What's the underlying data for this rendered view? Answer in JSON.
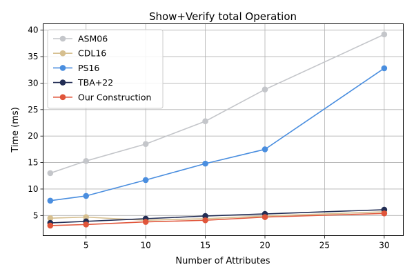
{
  "chart_data": {
    "type": "line",
    "title": "Show+Verify total Operation",
    "xlabel": "Number of Attributes",
    "ylabel": "Time (ms)",
    "xlim": [
      1.4,
      31.6
    ],
    "ylim": [
      1.2,
      41.2
    ],
    "xticks": [
      5,
      10,
      15,
      20,
      25,
      30
    ],
    "yticks": [
      5,
      10,
      15,
      20,
      25,
      30,
      35,
      40
    ],
    "grid": true,
    "legend_position": "upper-left",
    "x": [
      2,
      5,
      10,
      15,
      20,
      30
    ],
    "series": [
      {
        "name": "ASM06",
        "color": "#c4c6ca",
        "values": [
          13.0,
          15.3,
          18.5,
          22.8,
          28.8,
          39.2
        ]
      },
      {
        "name": "CDL16",
        "color": "#d6bf8f",
        "values": [
          4.5,
          4.7,
          4.1,
          4.4,
          4.9,
          5.7
        ]
      },
      {
        "name": "PS16",
        "color": "#4a8edf",
        "values": [
          7.8,
          8.7,
          11.7,
          14.8,
          17.5,
          32.8
        ]
      },
      {
        "name": "TBA+22",
        "color": "#232e55",
        "values": [
          3.6,
          3.9,
          4.4,
          4.9,
          5.3,
          6.1
        ]
      },
      {
        "name": "Our Construction",
        "color": "#e0553a",
        "values": [
          3.1,
          3.3,
          3.8,
          4.1,
          4.7,
          5.4
        ]
      }
    ]
  }
}
